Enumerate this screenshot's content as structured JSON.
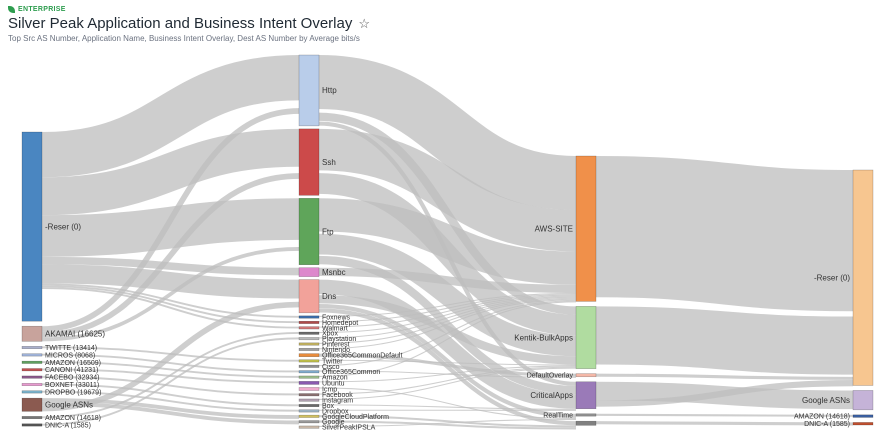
{
  "header": {
    "badge": "ENTERPRISE",
    "title": "Silver Peak Application and Business Intent Overlay",
    "star_icon": "☆",
    "subtitle": "Top Src AS Number, Application Name, Business Intent Overlay, Dest AS Number by Average bits/s"
  },
  "chart_data": {
    "type": "sankey",
    "title": "Silver Peak Application and Business Intent Overlay",
    "subtitle": "Top Src AS Number, Application Name, Business Intent Overlay, Dest AS Number by Average bits/s",
    "columns": [
      [
        {
          "id": "s1",
          "label": "-Reser (0)",
          "value": 100,
          "color": "#4a86c1"
        },
        {
          "id": "s2",
          "label": "AKAMAI (16625)",
          "value": 8,
          "color": "#c8a39c"
        },
        {
          "id": "s3",
          "label": "TWITTE (13414)",
          "value": 1.2,
          "color": "#aab0cc"
        },
        {
          "id": "s4",
          "label": "MICROS (8068)",
          "value": 1.2,
          "color": "#9fb2d8"
        },
        {
          "id": "s5",
          "label": "AMAZON (16509)",
          "value": 1.2,
          "color": "#5fa05f"
        },
        {
          "id": "s6",
          "label": "CANONI (41231)",
          "value": 1.2,
          "color": "#c05050"
        },
        {
          "id": "s7",
          "label": "FACEBO (32934)",
          "value": 1.2,
          "color": "#8b5a8b"
        },
        {
          "id": "s8",
          "label": "BOXNET (33011)",
          "value": 1.2,
          "color": "#e89ad0"
        },
        {
          "id": "s9",
          "label": "DROPBO (19679)",
          "value": 1.2,
          "color": "#7ab0c8"
        },
        {
          "id": "s10",
          "label": "Google ASNs",
          "value": 7,
          "color": "#8b5a50"
        },
        {
          "id": "s11",
          "label": "AMAZON (14618)",
          "value": 1.2,
          "color": "#777777"
        },
        {
          "id": "s12",
          "label": "DNIC-A (1585)",
          "value": 1.2,
          "color": "#555555"
        }
      ],
      [
        {
          "id": "a1",
          "label": "Http",
          "value": 32,
          "color": "#b9cdea"
        },
        {
          "id": "a2",
          "label": "Ssh",
          "value": 30,
          "color": "#cc4a4a"
        },
        {
          "id": "a3",
          "label": "Ftp",
          "value": 30,
          "color": "#5fa55a"
        },
        {
          "id": "a4",
          "label": "Msnbc",
          "value": 4,
          "color": "#dd88cc"
        },
        {
          "id": "a5",
          "label": "Dns",
          "value": 15,
          "color": "#f2a29a"
        },
        {
          "id": "a6",
          "label": "Foxnews",
          "value": 1,
          "color": "#3d6ea8"
        },
        {
          "id": "a7",
          "label": "Homedepot",
          "value": 1,
          "color": "#b04a4a"
        },
        {
          "id": "a8",
          "label": "Walmart",
          "value": 1,
          "color": "#d07878"
        },
        {
          "id": "a9",
          "label": "Xbox",
          "value": 1,
          "color": "#6a6a6a"
        },
        {
          "id": "a10",
          "label": "Playstation",
          "value": 1,
          "color": "#b8b8b8"
        },
        {
          "id": "a11",
          "label": "Pinterest",
          "value": 1,
          "color": "#c0b060"
        },
        {
          "id": "a12",
          "label": "Nintendo",
          "value": 1,
          "color": "#a0a0a0"
        },
        {
          "id": "a13",
          "label": "Office365CommonDefault",
          "value": 1.4,
          "color": "#e88c3c"
        },
        {
          "id": "a14",
          "label": "Twitter",
          "value": 1,
          "color": "#bcbc4a"
        },
        {
          "id": "a15",
          "label": "Cisco",
          "value": 1,
          "color": "#909090"
        },
        {
          "id": "a16",
          "label": "Office365Common",
          "value": 1,
          "color": "#7faacc"
        },
        {
          "id": "a17",
          "label": "Amazon",
          "value": 1,
          "color": "#9aba8a"
        },
        {
          "id": "a18",
          "label": "Ubuntu",
          "value": 1.4,
          "color": "#8a5ab0"
        },
        {
          "id": "a19",
          "label": "Icmp",
          "value": 1.4,
          "color": "#eeaacc"
        },
        {
          "id": "a20",
          "label": "Facebook",
          "value": 1,
          "color": "#8a7070"
        },
        {
          "id": "a21",
          "label": "Instagram",
          "value": 1,
          "color": "#b0a0b0"
        },
        {
          "id": "a22",
          "label": "Box",
          "value": 1,
          "color": "#6a6a6a"
        },
        {
          "id": "a23",
          "label": "Dropbox",
          "value": 1,
          "color": "#9ab0c0"
        },
        {
          "id": "a24",
          "label": "GoogleCloudPlatform",
          "value": 1,
          "color": "#d0c060"
        },
        {
          "id": "a25",
          "label": "Google",
          "value": 1,
          "color": "#999999"
        },
        {
          "id": "a26",
          "label": "SilverPeakIPSLA",
          "value": 1,
          "color": "#c8b8a8"
        }
      ],
      [
        {
          "id": "b1",
          "label": "AWS-SITE",
          "value": 70,
          "color": "#f0904a"
        },
        {
          "id": "b2",
          "label": "Kentik-BulkApps",
          "value": 30,
          "color": "#b0dca0"
        },
        {
          "id": "b3",
          "label": "DefaultOverlay",
          "value": 1.5,
          "color": "#f4b8a8"
        },
        {
          "id": "b4",
          "label": "CriticalApps",
          "value": 13,
          "color": "#9a7ab8"
        },
        {
          "id": "b5",
          "label": "RealTime",
          "value": 1,
          "color": "#909090"
        },
        {
          "id": "b6",
          "label": "",
          "value": 2,
          "color": "#808080"
        }
      ],
      [
        {
          "id": "d1",
          "label": "-Reser (0)",
          "value": 100,
          "color": "#f7c690"
        },
        {
          "id": "d2",
          "label": "Google ASNs",
          "value": 9,
          "color": "#c5b3d8"
        },
        {
          "id": "d3",
          "label": "AMAZON (14618)",
          "value": 1.2,
          "color": "#3a5fa0"
        },
        {
          "id": "d4",
          "label": "DNIC-A (1585)",
          "value": 1.2,
          "color": "#c05030"
        }
      ]
    ],
    "links": [
      [
        "s1",
        "a1",
        24
      ],
      [
        "s1",
        "a2",
        20
      ],
      [
        "s1",
        "a3",
        22
      ],
      [
        "s1",
        "a4",
        4
      ],
      [
        "s1",
        "a5",
        10
      ],
      [
        "s1",
        "a6",
        1
      ],
      [
        "s1",
        "a7",
        1
      ],
      [
        "s1",
        "a8",
        1
      ],
      [
        "s2",
        "a1",
        3
      ],
      [
        "s2",
        "a2",
        3
      ],
      [
        "s2",
        "a3",
        2
      ],
      [
        "s3",
        "a14",
        1
      ],
      [
        "s4",
        "a16",
        1
      ],
      [
        "s5",
        "a17",
        1
      ],
      [
        "s6",
        "a18",
        1
      ],
      [
        "s7",
        "a20",
        1
      ],
      [
        "s8",
        "a22",
        1
      ],
      [
        "s9",
        "a23",
        1
      ],
      [
        "s10",
        "a24",
        2
      ],
      [
        "s10",
        "a25",
        2
      ],
      [
        "s10",
        "a5",
        3
      ],
      [
        "s11",
        "a9",
        1
      ],
      [
        "s12",
        "a10",
        1
      ],
      [
        "a1",
        "b1",
        26
      ],
      [
        "a1",
        "b2",
        4
      ],
      [
        "a1",
        "b4",
        2
      ],
      [
        "a2",
        "b1",
        20
      ],
      [
        "a2",
        "b2",
        10
      ],
      [
        "a3",
        "b1",
        16
      ],
      [
        "a3",
        "b2",
        10
      ],
      [
        "a3",
        "b4",
        4
      ],
      [
        "a4",
        "b1",
        4
      ],
      [
        "a5",
        "b4",
        7
      ],
      [
        "a5",
        "b2",
        4
      ],
      [
        "a5",
        "b5",
        2
      ],
      [
        "a5",
        "b6",
        2
      ],
      [
        "a6",
        "b1",
        0.5
      ],
      [
        "a7",
        "b1",
        0.5
      ],
      [
        "a8",
        "b1",
        0.5
      ],
      [
        "a9",
        "b1",
        0.5
      ],
      [
        "a10",
        "b1",
        0.5
      ],
      [
        "a11",
        "b1",
        0.5
      ],
      [
        "a12",
        "b1",
        0.5
      ],
      [
        "a13",
        "b3",
        1.5
      ],
      [
        "a14",
        "b2",
        0.5
      ],
      [
        "a15",
        "b1",
        0.5
      ],
      [
        "a16",
        "b3",
        0.5
      ],
      [
        "a17",
        "b1",
        0.5
      ],
      [
        "a18",
        "b2",
        0.5
      ],
      [
        "a19",
        "b5",
        0.5
      ],
      [
        "a20",
        "b2",
        0.5
      ],
      [
        "a21",
        "b2",
        0.5
      ],
      [
        "a22",
        "b4",
        0.5
      ],
      [
        "a23",
        "b4",
        0.5
      ],
      [
        "a24",
        "b6",
        1
      ],
      [
        "a25",
        "b6",
        1
      ],
      [
        "a26",
        "b5",
        0.5
      ],
      [
        "b1",
        "d1",
        68
      ],
      [
        "b2",
        "d1",
        28
      ],
      [
        "b3",
        "d1",
        1.5
      ],
      [
        "b4",
        "d2",
        9
      ],
      [
        "b4",
        "d1",
        3
      ],
      [
        "b5",
        "d3",
        1
      ],
      [
        "b6",
        "d4",
        1.5
      ]
    ]
  }
}
